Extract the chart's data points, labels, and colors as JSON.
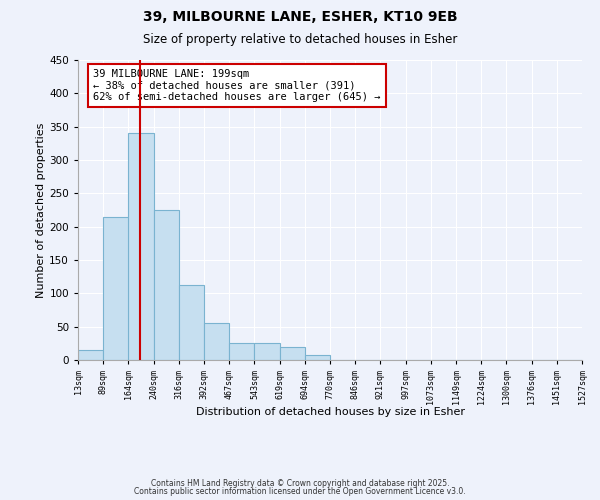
{
  "title": "39, MILBOURNE LANE, ESHER, KT10 9EB",
  "subtitle": "Size of property relative to detached houses in Esher",
  "xlabel": "Distribution of detached houses by size in Esher",
  "ylabel": "Number of detached properties",
  "bin_edges": [
    13,
    89,
    164,
    240,
    316,
    392,
    467,
    543,
    619,
    694,
    770,
    846,
    921,
    997,
    1073,
    1149,
    1224,
    1300,
    1376,
    1451,
    1527
  ],
  "bar_heights": [
    15,
    215,
    340,
    225,
    113,
    55,
    25,
    25,
    20,
    7,
    0,
    0,
    0,
    0,
    0,
    0,
    0,
    0,
    0,
    0
  ],
  "bar_color": "#c6dff0",
  "bar_edgecolor": "#7ab3d0",
  "red_line_x": 199,
  "annotation_text": "39 MILBOURNE LANE: 199sqm\n← 38% of detached houses are smaller (391)\n62% of semi-detached houses are larger (645) →",
  "annotation_box_edgecolor": "#cc0000",
  "annotation_box_facecolor": "#ffffff",
  "red_line_color": "#cc0000",
  "ylim": [
    0,
    450
  ],
  "yticks": [
    0,
    50,
    100,
    150,
    200,
    250,
    300,
    350,
    400,
    450
  ],
  "tick_labels": [
    "13sqm",
    "89sqm",
    "164sqm",
    "240sqm",
    "316sqm",
    "392sqm",
    "467sqm",
    "543sqm",
    "619sqm",
    "694sqm",
    "770sqm",
    "846sqm",
    "921sqm",
    "997sqm",
    "1073sqm",
    "1149sqm",
    "1224sqm",
    "1300sqm",
    "1376sqm",
    "1451sqm",
    "1527sqm"
  ],
  "footer1": "Contains HM Land Registry data © Crown copyright and database right 2025.",
  "footer2": "Contains public sector information licensed under the Open Government Licence v3.0.",
  "background_color": "#eef2fb",
  "grid_color": "#ffffff",
  "figsize": [
    6.0,
    5.0
  ],
  "dpi": 100
}
